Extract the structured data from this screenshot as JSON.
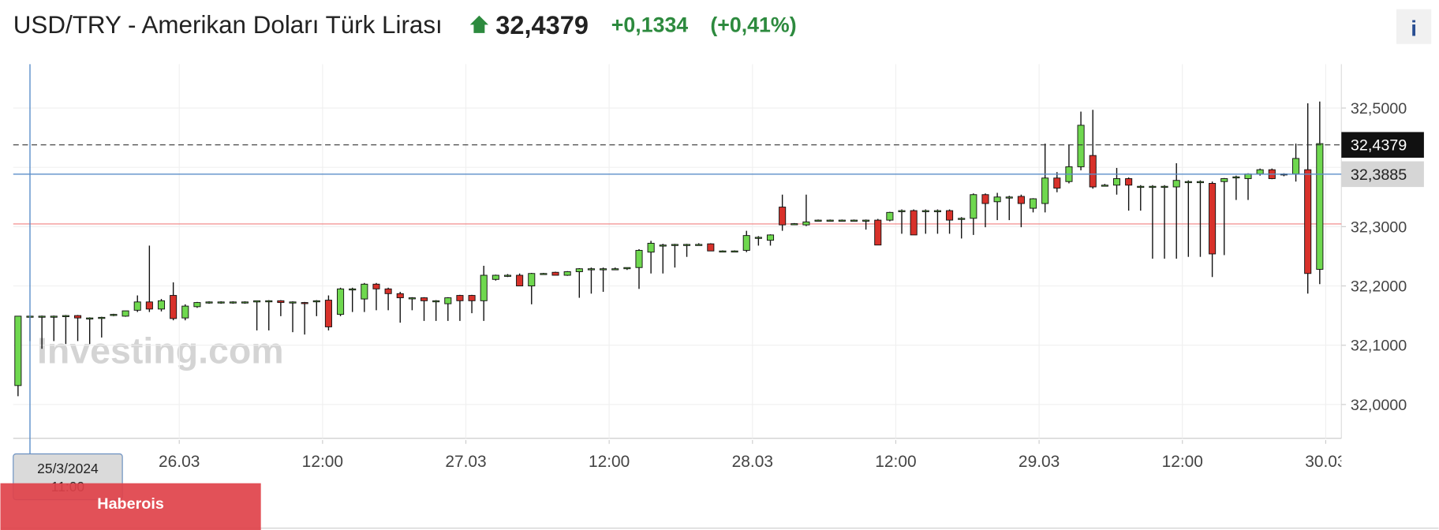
{
  "chart_data": {
    "type": "candlestick",
    "title": "USD/TRY - Amerikan Doları Türk Lirası",
    "last_price": {
      "value": 32.4379,
      "label": "32,4379"
    },
    "change": {
      "value": 0.1334,
      "label": "+0,1334"
    },
    "change_pct": {
      "value": 0.41,
      "label": "(+0,41%)"
    },
    "up_color": "#6fd84f",
    "down_color": "#d8312a",
    "prev_close": 32.3045,
    "crosshair": {
      "x": "25/3/2024 11:00",
      "y": {
        "value": 32.3885,
        "label": "32,3885"
      }
    },
    "ylim": [
      31.943,
      32.574
    ],
    "yticks": [
      {
        "value": 32.0,
        "label": "32,0000"
      },
      {
        "value": 32.1,
        "label": "32,1000"
      },
      {
        "value": 32.2,
        "label": "32,2000"
      },
      {
        "value": 32.3,
        "label": "32,3000"
      },
      {
        "value": 32.4,
        "label": "32,4000"
      },
      {
        "value": 32.5,
        "label": "32,5000"
      }
    ],
    "xticks": [
      {
        "value": "26/3/2024 00:00",
        "label": "26.03"
      },
      {
        "value": "26/3/2024 12:00",
        "label": "12:00"
      },
      {
        "value": "27/3/2024 00:00",
        "label": "27.03"
      },
      {
        "value": "27/3/2024 12:00",
        "label": "12:00"
      },
      {
        "value": "28/3/2024 00:00",
        "label": "28.03"
      },
      {
        "value": "28/3/2024 12:00",
        "label": "12:00"
      },
      {
        "value": "29/3/2024 00:00",
        "label": "29.03"
      },
      {
        "value": "29/3/2024 12:00",
        "label": "12:00"
      },
      {
        "value": "30/3/2024 00:00",
        "label": "30.03"
      }
    ],
    "grid": true,
    "x": [
      "25/3/2024 10:00",
      "25/3/2024 11:00",
      "25/3/2024 12:00",
      "25/3/2024 13:00",
      "25/3/2024 14:00",
      "25/3/2024 15:00",
      "25/3/2024 16:00",
      "25/3/2024 17:00",
      "25/3/2024 18:00",
      "25/3/2024 19:00",
      "25/3/2024 20:00",
      "25/3/2024 21:00",
      "25/3/2024 22:00",
      "25/3/2024 23:00",
      "26/3/2024 00:00",
      "26/3/2024 01:00",
      "26/3/2024 02:00",
      "26/3/2024 03:00",
      "26/3/2024 04:00",
      "26/3/2024 05:00",
      "26/3/2024 06:00",
      "26/3/2024 07:00",
      "26/3/2024 08:00",
      "26/3/2024 09:00",
      "26/3/2024 10:00",
      "26/3/2024 11:00",
      "26/3/2024 12:00",
      "26/3/2024 13:00",
      "26/3/2024 14:00",
      "26/3/2024 15:00",
      "26/3/2024 16:00",
      "26/3/2024 17:00",
      "26/3/2024 18:00",
      "26/3/2024 19:00",
      "26/3/2024 20:00",
      "26/3/2024 21:00",
      "26/3/2024 22:00",
      "26/3/2024 23:00",
      "27/3/2024 00:00",
      "27/3/2024 01:00",
      "27/3/2024 02:00",
      "27/3/2024 03:00",
      "27/3/2024 04:00",
      "27/3/2024 05:00",
      "27/3/2024 06:00",
      "27/3/2024 07:00",
      "27/3/2024 08:00",
      "27/3/2024 09:00",
      "27/3/2024 10:00",
      "27/3/2024 11:00",
      "27/3/2024 12:00",
      "27/3/2024 13:00",
      "27/3/2024 14:00",
      "27/3/2024 15:00",
      "27/3/2024 16:00",
      "27/3/2024 17:00",
      "27/3/2024 18:00",
      "27/3/2024 19:00",
      "27/3/2024 20:00",
      "27/3/2024 21:00",
      "27/3/2024 22:00",
      "27/3/2024 23:00",
      "28/3/2024 00:00",
      "28/3/2024 01:00",
      "28/3/2024 02:00",
      "28/3/2024 03:00",
      "28/3/2024 04:00",
      "28/3/2024 05:00",
      "28/3/2024 06:00",
      "28/3/2024 07:00",
      "28/3/2024 08:00",
      "28/3/2024 09:00",
      "28/3/2024 10:00",
      "28/3/2024 11:00",
      "28/3/2024 12:00",
      "28/3/2024 13:00",
      "28/3/2024 14:00",
      "28/3/2024 15:00",
      "28/3/2024 16:00",
      "28/3/2024 17:00",
      "28/3/2024 18:00",
      "28/3/2024 19:00",
      "28/3/2024 20:00",
      "28/3/2024 21:00",
      "28/3/2024 22:00",
      "28/3/2024 23:00",
      "29/3/2024 00:00",
      "29/3/2024 01:00",
      "29/3/2024 02:00",
      "29/3/2024 03:00",
      "29/3/2024 04:00",
      "29/3/2024 05:00",
      "29/3/2024 06:00",
      "29/3/2024 07:00",
      "29/3/2024 08:00",
      "29/3/2024 09:00",
      "29/3/2024 10:00",
      "29/3/2024 11:00",
      "29/3/2024 12:00",
      "29/3/2024 13:00",
      "29/3/2024 14:00",
      "29/3/2024 15:00",
      "29/3/2024 16:00",
      "29/3/2024 17:00",
      "29/3/2024 18:00",
      "29/3/2024 19:00",
      "29/3/2024 20:00",
      "29/3/2024 21:00",
      "29/3/2024 22:00",
      "29/3/2024 23:00"
    ],
    "ohlc": [
      [
        32.032,
        32.149,
        32.014,
        32.149
      ],
      [
        32.149,
        32.15,
        32.107,
        32.149
      ],
      [
        32.149,
        32.15,
        32.094,
        32.149
      ],
      [
        32.149,
        32.15,
        32.107,
        32.149
      ],
      [
        32.15,
        32.151,
        32.102,
        32.15
      ],
      [
        32.15,
        32.151,
        32.107,
        32.146
      ],
      [
        32.146,
        32.147,
        32.102,
        32.146
      ],
      [
        32.147,
        32.148,
        32.113,
        32.147
      ],
      [
        32.152,
        32.153,
        32.149,
        32.152
      ],
      [
        32.149,
        32.158,
        32.148,
        32.158
      ],
      [
        32.159,
        32.184,
        32.156,
        32.173
      ],
      [
        32.173,
        32.268,
        32.156,
        32.161
      ],
      [
        32.161,
        32.178,
        32.157,
        32.175
      ],
      [
        32.184,
        32.206,
        32.142,
        32.145
      ],
      [
        32.146,
        32.169,
        32.142,
        32.166
      ],
      [
        32.165,
        32.173,
        32.163,
        32.172
      ],
      [
        32.173,
        32.174,
        32.17,
        32.173
      ],
      [
        32.173,
        32.174,
        32.17,
        32.173
      ],
      [
        32.173,
        32.174,
        32.17,
        32.173
      ],
      [
        32.173,
        32.174,
        32.17,
        32.173
      ],
      [
        32.173,
        32.175,
        32.125,
        32.175
      ],
      [
        32.175,
        32.176,
        32.125,
        32.175
      ],
      [
        32.175,
        32.176,
        32.149,
        32.172
      ],
      [
        32.173,
        32.174,
        32.122,
        32.173
      ],
      [
        32.172,
        32.173,
        32.118,
        32.171
      ],
      [
        32.175,
        32.176,
        32.149,
        32.175
      ],
      [
        32.176,
        32.184,
        32.125,
        32.131
      ],
      [
        32.152,
        32.197,
        32.149,
        32.195
      ],
      [
        32.195,
        32.197,
        32.156,
        32.195
      ],
      [
        32.178,
        32.205,
        32.156,
        32.203
      ],
      [
        32.203,
        32.205,
        32.159,
        32.195
      ],
      [
        32.195,
        32.197,
        32.159,
        32.187
      ],
      [
        32.187,
        32.19,
        32.138,
        32.18
      ],
      [
        32.18,
        32.181,
        32.159,
        32.18
      ],
      [
        32.18,
        32.181,
        32.141,
        32.175
      ],
      [
        32.175,
        32.176,
        32.141,
        32.175
      ],
      [
        32.17,
        32.181,
        32.141,
        32.18
      ],
      [
        32.184,
        32.185,
        32.141,
        32.175
      ],
      [
        32.184,
        32.185,
        32.154,
        32.175
      ],
      [
        32.175,
        32.234,
        32.141,
        32.218
      ],
      [
        32.211,
        32.219,
        32.209,
        32.218
      ],
      [
        32.218,
        32.22,
        32.215,
        32.218
      ],
      [
        32.218,
        32.221,
        32.2,
        32.2
      ],
      [
        32.2,
        32.222,
        32.169,
        32.221
      ],
      [
        32.221,
        32.222,
        32.219,
        32.221
      ],
      [
        32.223,
        32.224,
        32.218,
        32.218
      ],
      [
        32.218,
        32.225,
        32.217,
        32.224
      ],
      [
        32.224,
        32.23,
        32.18,
        32.229
      ],
      [
        32.229,
        32.231,
        32.187,
        32.229
      ],
      [
        32.229,
        32.231,
        32.19,
        32.229
      ],
      [
        32.229,
        32.231,
        32.227,
        32.229
      ],
      [
        32.229,
        32.231,
        32.227,
        32.231
      ],
      [
        32.231,
        32.262,
        32.195,
        32.26
      ],
      [
        32.257,
        32.276,
        32.221,
        32.272
      ],
      [
        32.269,
        32.271,
        32.221,
        32.269
      ],
      [
        32.27,
        32.271,
        32.231,
        32.27
      ],
      [
        32.27,
        32.271,
        32.249,
        32.27
      ],
      [
        32.27,
        32.272,
        32.268,
        32.27
      ],
      [
        32.271,
        32.272,
        32.259,
        32.259
      ],
      [
        32.259,
        32.26,
        32.257,
        32.259
      ],
      [
        32.259,
        32.26,
        32.257,
        32.259
      ],
      [
        32.26,
        32.293,
        32.257,
        32.285
      ],
      [
        32.282,
        32.284,
        32.268,
        32.282
      ],
      [
        32.277,
        32.287,
        32.268,
        32.286
      ],
      [
        32.333,
        32.354,
        32.293,
        32.303
      ],
      [
        32.305,
        32.306,
        32.303,
        32.305
      ],
      [
        32.303,
        32.354,
        32.301,
        32.308
      ],
      [
        32.311,
        32.312,
        32.31,
        32.311
      ],
      [
        32.311,
        32.312,
        32.31,
        32.311
      ],
      [
        32.311,
        32.312,
        32.31,
        32.311
      ],
      [
        32.311,
        32.312,
        32.31,
        32.311
      ],
      [
        32.311,
        32.312,
        32.295,
        32.311
      ],
      [
        32.311,
        32.313,
        32.269,
        32.269
      ],
      [
        32.311,
        32.325,
        32.309,
        32.324
      ],
      [
        32.327,
        32.329,
        32.288,
        32.327
      ],
      [
        32.327,
        32.329,
        32.286,
        32.286
      ],
      [
        32.327,
        32.329,
        32.288,
        32.327
      ],
      [
        32.327,
        32.329,
        32.288,
        32.327
      ],
      [
        32.327,
        32.329,
        32.288,
        32.311
      ],
      [
        32.314,
        32.316,
        32.28,
        32.314
      ],
      [
        32.314,
        32.356,
        32.286,
        32.354
      ],
      [
        32.354,
        32.356,
        32.299,
        32.339
      ],
      [
        32.342,
        32.357,
        32.311,
        32.35
      ],
      [
        32.35,
        32.352,
        32.311,
        32.35
      ],
      [
        32.351,
        32.354,
        32.299,
        32.339
      ],
      [
        32.331,
        32.348,
        32.324,
        32.347
      ],
      [
        32.339,
        32.44,
        32.324,
        32.382
      ],
      [
        32.382,
        32.392,
        32.358,
        32.365
      ],
      [
        32.376,
        32.438,
        32.373,
        32.401
      ],
      [
        32.401,
        32.494,
        32.395,
        32.471
      ],
      [
        32.42,
        32.497,
        32.364,
        32.367
      ],
      [
        32.37,
        32.372,
        32.368,
        32.37
      ],
      [
        32.37,
        32.399,
        32.354,
        32.381
      ],
      [
        32.381,
        32.383,
        32.327,
        32.37
      ],
      [
        32.368,
        32.37,
        32.327,
        32.368
      ],
      [
        32.368,
        32.37,
        32.246,
        32.368
      ],
      [
        32.368,
        32.37,
        32.246,
        32.368
      ],
      [
        32.367,
        32.407,
        32.246,
        32.378
      ],
      [
        32.376,
        32.378,
        32.249,
        32.376
      ],
      [
        32.376,
        32.378,
        32.249,
        32.376
      ],
      [
        32.373,
        32.376,
        32.215,
        32.254
      ],
      [
        32.376,
        32.382,
        32.252,
        32.381
      ],
      [
        32.384,
        32.386,
        32.345,
        32.384
      ],
      [
        32.381,
        32.39,
        32.345,
        32.389
      ],
      [
        32.389,
        32.398,
        32.386,
        32.396
      ],
      [
        32.396,
        32.398,
        32.38,
        32.381
      ],
      [
        32.389,
        32.39,
        32.385,
        32.389
      ],
      [
        32.389,
        32.44,
        32.376,
        32.415
      ],
      [
        32.396,
        32.508,
        32.187,
        32.221
      ],
      [
        32.228,
        32.511,
        32.203,
        32.44
      ]
    ]
  },
  "watermark": "Investing.com",
  "banner": "Haberois",
  "info_button": "i"
}
